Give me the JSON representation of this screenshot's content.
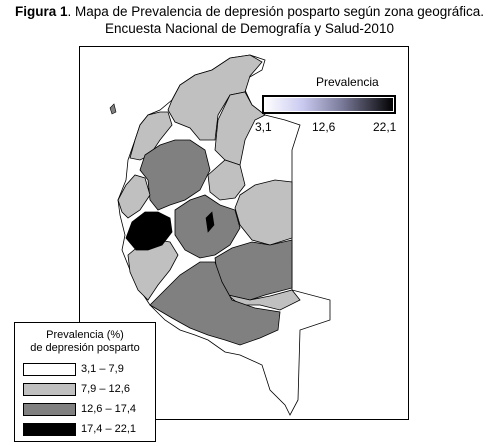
{
  "title": {
    "figure_label": "Figura 1",
    "line1_rest": ". Mapa de Prevalencia de depresión posparto según zona geográfica.",
    "line2": "Encuesta Nacional de Demografía y Salud-2010"
  },
  "colorbar": {
    "title": "Prevalencia",
    "min_label": "3,1",
    "mid_label": "12,6",
    "max_label": "22,1"
  },
  "legend": {
    "title_line1": "Prevalencia (%)",
    "title_line2": "de depresión posparto",
    "items": [
      {
        "label": "3,1 – 7,9",
        "color": "#ffffff"
      },
      {
        "label": "7,9 – 12,6",
        "color": "#c0c0c0"
      },
      {
        "label": "12,6 – 17,4",
        "color": "#808080"
      },
      {
        "label": "17,4 – 22,1",
        "color": "#000000"
      }
    ]
  },
  "colors": {
    "white_class": "#ffffff",
    "light_class": "#c0c0c0",
    "mid_class": "#808080",
    "dark_class": "#000000"
  }
}
